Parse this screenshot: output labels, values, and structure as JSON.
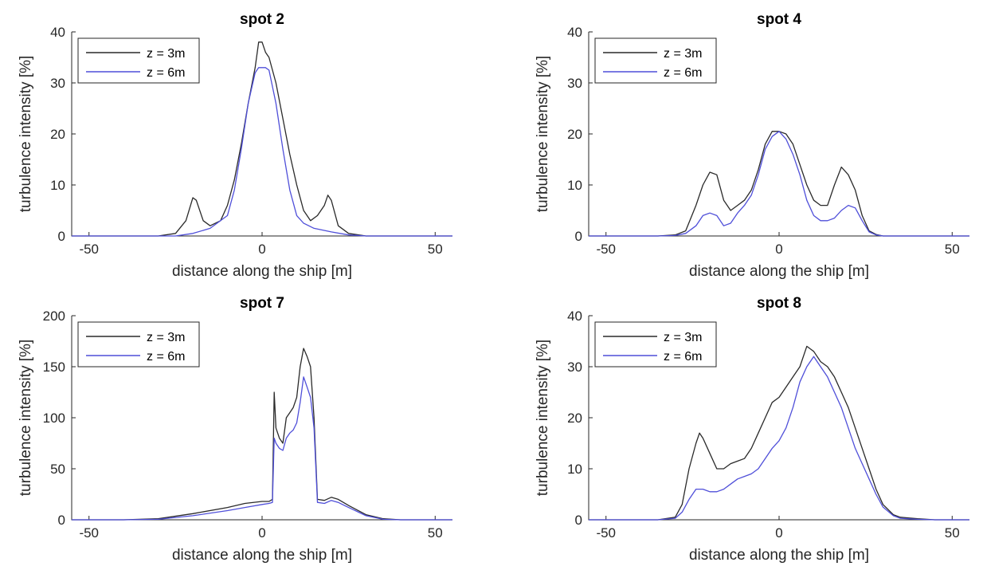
{
  "colors": {
    "z3": "#2a2a2a",
    "z6": "#4f4fd9"
  },
  "chart_data": [
    {
      "type": "line",
      "title": "spot 2",
      "xlabel": "distance along the ship [m]",
      "ylabel": "turbulence intensity [%]",
      "xlim": [
        -55,
        55
      ],
      "ylim": [
        0,
        40
      ],
      "xticks": [
        -50,
        0,
        50
      ],
      "yticks": [
        0,
        10,
        20,
        30,
        40
      ],
      "legend": "top-left",
      "series": [
        {
          "name": "z = 3m",
          "color": "#2a2a2a",
          "x": [
            -55,
            -30,
            -25,
            -22,
            -20,
            -19,
            -17,
            -15,
            -12,
            -10,
            -8,
            -6,
            -4,
            -2,
            -1,
            0,
            1,
            2,
            4,
            6,
            8,
            10,
            12,
            14,
            16,
            18,
            19,
            20,
            22,
            25,
            30,
            40,
            55
          ],
          "y": [
            0,
            0,
            0.5,
            3,
            7.5,
            7,
            3,
            2,
            3,
            6,
            11,
            18,
            26,
            33,
            38,
            38,
            36,
            35,
            30,
            23,
            16,
            10,
            5,
            3,
            4,
            6,
            8,
            7,
            2,
            0.5,
            0,
            0,
            0
          ]
        },
        {
          "name": "z = 6m",
          "color": "#4f4fd9",
          "x": [
            -55,
            -30,
            -25,
            -20,
            -15,
            -10,
            -8,
            -6,
            -4,
            -2,
            -1,
            0,
            1,
            2,
            4,
            6,
            8,
            10,
            12,
            15,
            20,
            25,
            30,
            55
          ],
          "y": [
            0,
            0,
            0,
            0.5,
            1.5,
            4,
            9,
            17,
            26,
            32,
            33,
            33,
            33,
            32.5,
            26,
            17,
            9,
            4,
            2.5,
            1.5,
            0.8,
            0.2,
            0,
            0
          ]
        }
      ]
    },
    {
      "type": "line",
      "title": "spot 4",
      "xlabel": "distance along the ship [m]",
      "ylabel": "turbulence intensity [%]",
      "xlim": [
        -55,
        55
      ],
      "ylim": [
        0,
        40
      ],
      "xticks": [
        -50,
        0,
        50
      ],
      "yticks": [
        0,
        10,
        20,
        30,
        40
      ],
      "legend": "top-left",
      "series": [
        {
          "name": "z = 3m",
          "color": "#2a2a2a",
          "x": [
            -55,
            -35,
            -30,
            -27,
            -24,
            -22,
            -20,
            -18,
            -16,
            -14,
            -12,
            -10,
            -8,
            -6,
            -4,
            -2,
            0,
            2,
            4,
            6,
            8,
            10,
            12,
            14,
            16,
            18,
            20,
            22,
            24,
            26,
            28,
            30,
            35,
            55
          ],
          "y": [
            0,
            0,
            0.2,
            1,
            6,
            10,
            12.5,
            12,
            7,
            5,
            6,
            7,
            9,
            13,
            18,
            20.5,
            20.5,
            20,
            18,
            14,
            10,
            7,
            6,
            6,
            10,
            13.5,
            12,
            9,
            4,
            1,
            0.3,
            0,
            0,
            0
          ]
        },
        {
          "name": "z = 6m",
          "color": "#4f4fd9",
          "x": [
            -55,
            -35,
            -30,
            -27,
            -24,
            -22,
            -20,
            -18,
            -16,
            -14,
            -12,
            -10,
            -8,
            -6,
            -4,
            -2,
            0,
            2,
            4,
            6,
            8,
            10,
            12,
            14,
            16,
            18,
            20,
            22,
            24,
            26,
            28,
            30,
            35,
            55
          ],
          "y": [
            0,
            0,
            0.1,
            0.5,
            2,
            4,
            4.5,
            4,
            2,
            2.5,
            4.5,
            6,
            8,
            12,
            17,
            19.5,
            20.5,
            19,
            16,
            12,
            7,
            4,
            3,
            3,
            3.5,
            5,
            6,
            5.5,
            3,
            0.8,
            0.2,
            0,
            0,
            0
          ]
        }
      ]
    },
    {
      "type": "line",
      "title": "spot 7",
      "xlabel": "distance along the ship [m]",
      "ylabel": "turbulence intensity [%]",
      "xlim": [
        -55,
        55
      ],
      "ylim": [
        0,
        200
      ],
      "xticks": [
        -50,
        0,
        50
      ],
      "yticks": [
        0,
        50,
        100,
        150,
        200
      ],
      "legend": "top-left",
      "series": [
        {
          "name": "z = 3m",
          "color": "#2a2a2a",
          "x": [
            -55,
            -40,
            -30,
            -20,
            -10,
            -5,
            0,
            2,
            3,
            3.5,
            4,
            5,
            6,
            7,
            8,
            9,
            10,
            11,
            12,
            13,
            14,
            15,
            16,
            18,
            20,
            22,
            25,
            30,
            35,
            40,
            55
          ],
          "y": [
            0,
            0,
            1,
            6,
            12,
            16,
            18,
            18,
            20,
            125,
            90,
            80,
            75,
            100,
            105,
            110,
            120,
            150,
            168,
            160,
            150,
            100,
            20,
            19,
            22,
            20,
            14,
            5,
            1,
            0,
            0
          ]
        },
        {
          "name": "z = 6m",
          "color": "#4f4fd9",
          "x": [
            -55,
            -40,
            -30,
            -20,
            -10,
            -5,
            0,
            2,
            3,
            3.5,
            4,
            5,
            6,
            7,
            8,
            9,
            10,
            11,
            12,
            13,
            14,
            15,
            16,
            18,
            20,
            22,
            25,
            30,
            35,
            40,
            55
          ],
          "y": [
            0,
            0,
            0.5,
            4,
            9,
            12,
            15,
            16,
            17,
            80,
            75,
            70,
            68,
            80,
            85,
            88,
            95,
            115,
            140,
            130,
            120,
            90,
            17,
            16,
            19,
            17,
            12,
            4,
            0.5,
            0,
            0
          ]
        }
      ]
    },
    {
      "type": "line",
      "title": "spot 8",
      "xlabel": "distance along the ship [m]",
      "ylabel": "turbulence intensity [%]",
      "xlim": [
        -55,
        55
      ],
      "ylim": [
        0,
        40
      ],
      "xticks": [
        -50,
        0,
        50
      ],
      "yticks": [
        0,
        10,
        20,
        30,
        40
      ],
      "legend": "top-left",
      "series": [
        {
          "name": "z = 3m",
          "color": "#2a2a2a",
          "x": [
            -55,
            -35,
            -30,
            -28,
            -26,
            -24,
            -23,
            -22,
            -20,
            -18,
            -16,
            -14,
            -12,
            -10,
            -8,
            -6,
            -4,
            -2,
            0,
            2,
            4,
            6,
            8,
            10,
            12,
            14,
            16,
            18,
            20,
            22,
            24,
            26,
            28,
            30,
            33,
            35,
            40,
            45,
            55
          ],
          "y": [
            0,
            0,
            0.5,
            3,
            10,
            15,
            17,
            16,
            13,
            10,
            10,
            11,
            11.5,
            12,
            14,
            17,
            20,
            23,
            24,
            26,
            28,
            30,
            34,
            33,
            31,
            30,
            28,
            25,
            22,
            18,
            14,
            10,
            6,
            3,
            1,
            0.5,
            0.2,
            0,
            0
          ]
        },
        {
          "name": "z = 6m",
          "color": "#4f4fd9",
          "x": [
            -55,
            -35,
            -30,
            -28,
            -26,
            -24,
            -22,
            -20,
            -18,
            -16,
            -14,
            -12,
            -10,
            -8,
            -6,
            -4,
            -2,
            0,
            2,
            4,
            6,
            8,
            10,
            12,
            14,
            16,
            18,
            20,
            22,
            24,
            26,
            28,
            30,
            33,
            35,
            40,
            45,
            55
          ],
          "y": [
            0,
            0,
            0.3,
            1.5,
            4,
            6,
            6,
            5.5,
            5.5,
            6,
            7,
            8,
            8.5,
            9,
            10,
            12,
            14,
            15.5,
            18,
            22,
            27,
            30,
            32,
            30,
            28,
            25,
            22,
            18,
            14,
            11,
            8,
            5,
            2.5,
            0.8,
            0.3,
            0.1,
            0,
            0
          ]
        }
      ]
    }
  ]
}
